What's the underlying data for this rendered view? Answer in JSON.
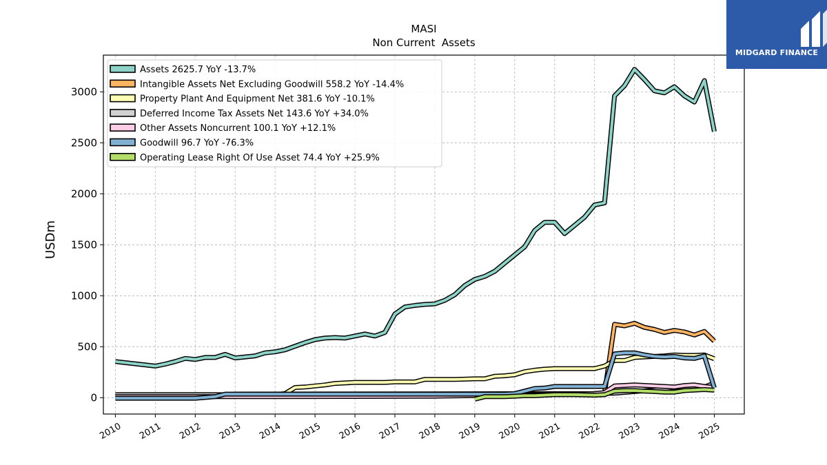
{
  "brand": {
    "name": "MIDGARD FINANCE",
    "bg_color": "#2d5aa9"
  },
  "chart_data": {
    "type": "line",
    "title": "MASI",
    "subtitle": "Non Current  Assets",
    "ylabel": "USDm",
    "xlim": [
      2009.7,
      2025.75
    ],
    "ylim": [
      -160,
      3360
    ],
    "yticks": [
      0,
      500,
      1000,
      1500,
      2000,
      2500,
      3000
    ],
    "xticks": [
      "2010",
      "2011",
      "2012",
      "2013",
      "2014",
      "2015",
      "2016",
      "2017",
      "2018",
      "2019",
      "2020",
      "2021",
      "2022",
      "2023",
      "2024",
      "2025"
    ],
    "grid": true,
    "legend_position": "top-left",
    "series": [
      {
        "name": "Assets  2625.7 YoY -13.7%",
        "color": "#8dd3c7",
        "x": [
          2010,
          2011,
          2011.25,
          2011.5,
          2011.75,
          2012,
          2012.25,
          2012.5,
          2012.75,
          2013,
          2013.25,
          2013.5,
          2013.75,
          2014,
          2014.25,
          2014.5,
          2014.75,
          2015,
          2015.25,
          2015.5,
          2015.75,
          2016,
          2016.25,
          2016.5,
          2016.75,
          2017,
          2017.25,
          2017.5,
          2017.75,
          2018,
          2018.25,
          2018.5,
          2018.75,
          2019,
          2019.25,
          2019.5,
          2019.75,
          2020,
          2020.25,
          2020.5,
          2020.75,
          2021,
          2021.25,
          2021.5,
          2021.75,
          2022,
          2022.25,
          2022.5,
          2022.75,
          2023,
          2023.25,
          2023.5,
          2023.75,
          2024,
          2024.25,
          2024.5,
          2024.75,
          2025
        ],
        "y": [
          355,
          310,
          330,
          355,
          385,
          375,
          395,
          395,
          425,
          390,
          400,
          410,
          440,
          450,
          470,
          505,
          540,
          570,
          585,
          590,
          585,
          605,
          625,
          605,
          640,
          820,
          890,
          905,
          915,
          920,
          955,
          1010,
          1100,
          1160,
          1190,
          1240,
          1320,
          1400,
          1480,
          1640,
          1720,
          1720,
          1610,
          1690,
          1770,
          1890,
          1910,
          2960,
          3060,
          3220,
          3120,
          3010,
          2990,
          3050,
          2960,
          2900,
          3110,
          2610
        ]
      },
      {
        "name": "Intangible Assets Net Excluding Goodwill  558.2 YoY -14.4%",
        "color": "#fdb462",
        "x": [
          2010,
          2012.75,
          2013,
          2022,
          2022.25,
          2022.5,
          2022.75,
          2023,
          2023.25,
          2023.5,
          2023.75,
          2024,
          2024.25,
          2024.5,
          2024.75,
          2025
        ],
        "y": [
          22,
          22,
          35,
          40,
          45,
          720,
          705,
          730,
          690,
          670,
          640,
          660,
          645,
          615,
          650,
          555
        ]
      },
      {
        "name": "Property Plant And Equipment Net  381.6 YoY -10.1%",
        "color": "#ffffb3",
        "x": [
          2010,
          2014,
          2014.25,
          2014.5,
          2014.75,
          2015,
          2015.25,
          2015.5,
          2015.75,
          2016,
          2016.25,
          2016.5,
          2016.75,
          2017,
          2017.25,
          2017.5,
          2017.75,
          2018,
          2018.25,
          2018.5,
          2018.75,
          2019,
          2019.25,
          2019.5,
          2019.75,
          2020,
          2020.25,
          2020.5,
          2020.75,
          2021,
          2021.25,
          2021.5,
          2021.75,
          2022,
          2022.25,
          2022.5,
          2022.75,
          2023,
          2023.25,
          2023.5,
          2023.75,
          2024,
          2024.25,
          2024.5,
          2024.75,
          2025
        ],
        "y": [
          25,
          30,
          40,
          100,
          105,
          115,
          125,
          140,
          145,
          150,
          150,
          150,
          150,
          155,
          155,
          155,
          180,
          180,
          180,
          180,
          182,
          185,
          185,
          210,
          215,
          225,
          255,
          270,
          280,
          285,
          285,
          285,
          285,
          285,
          310,
          365,
          365,
          395,
          400,
          405,
          410,
          420,
          415,
          415,
          420,
          382
        ]
      },
      {
        "name": "Deferred Income Tax Assets Net  143.6 YoY +34.0%",
        "color": "#d0d0d0",
        "x": [
          2010,
          2012,
          2014,
          2016,
          2018,
          2020,
          2021,
          2022,
          2022.5,
          2023,
          2023.5,
          2024,
          2024.5,
          2024.75,
          2025
        ],
        "y": [
          30,
          30,
          28,
          25,
          25,
          30,
          35,
          40,
          45,
          60,
          75,
          100,
          110,
          105,
          143
        ]
      },
      {
        "name": "Other Assets Noncurrent  100.1 YoY +12.1%",
        "color": "#fccde5",
        "x": [
          2010,
          2014,
          2016,
          2018,
          2020,
          2021,
          2022,
          2022.25,
          2022.5,
          2023,
          2023.5,
          2024,
          2024.25,
          2024.5,
          2024.75,
          2025
        ],
        "y": [
          10,
          10,
          12,
          15,
          25,
          30,
          40,
          50,
          115,
          125,
          115,
          105,
          120,
          125,
          110,
          100
        ]
      },
      {
        "name": "Goodwill  96.7 YoY -76.3%",
        "color": "#80b1d3",
        "x": [
          2010,
          2012,
          2012.5,
          2012.75,
          2019.75,
          2020,
          2020.25,
          2020.5,
          2020.75,
          2021,
          2021.25,
          2021.5,
          2021.75,
          2022,
          2022.25,
          2022.5,
          2022.75,
          2023,
          2023.25,
          2023.5,
          2023.75,
          2024,
          2024.25,
          2024.5,
          2024.75,
          2025
        ],
        "y": [
          -5,
          -5,
          10,
          35,
          35,
          40,
          65,
          90,
          95,
          110,
          110,
          110,
          110,
          110,
          110,
          430,
          440,
          440,
          420,
          405,
          400,
          405,
          390,
          385,
          410,
          97
        ]
      },
      {
        "name": "Operating Lease Right Of Use Asset  74.4 YoY +25.9%",
        "color": "#b3de69",
        "x": [
          2019,
          2019.25,
          2019.5,
          2019.75,
          2020,
          2020.25,
          2020.5,
          2020.75,
          2021,
          2021.5,
          2022,
          2022.25,
          2022.5,
          2022.75,
          2023,
          2023.25,
          2023.5,
          2023.75,
          2024,
          2024.25,
          2024.5,
          2024.75,
          2025
        ],
        "y": [
          -15,
          10,
          10,
          10,
          15,
          20,
          20,
          25,
          30,
          30,
          25,
          30,
          65,
          70,
          70,
          65,
          60,
          55,
          55,
          70,
          75,
          80,
          74
        ]
      }
    ]
  }
}
